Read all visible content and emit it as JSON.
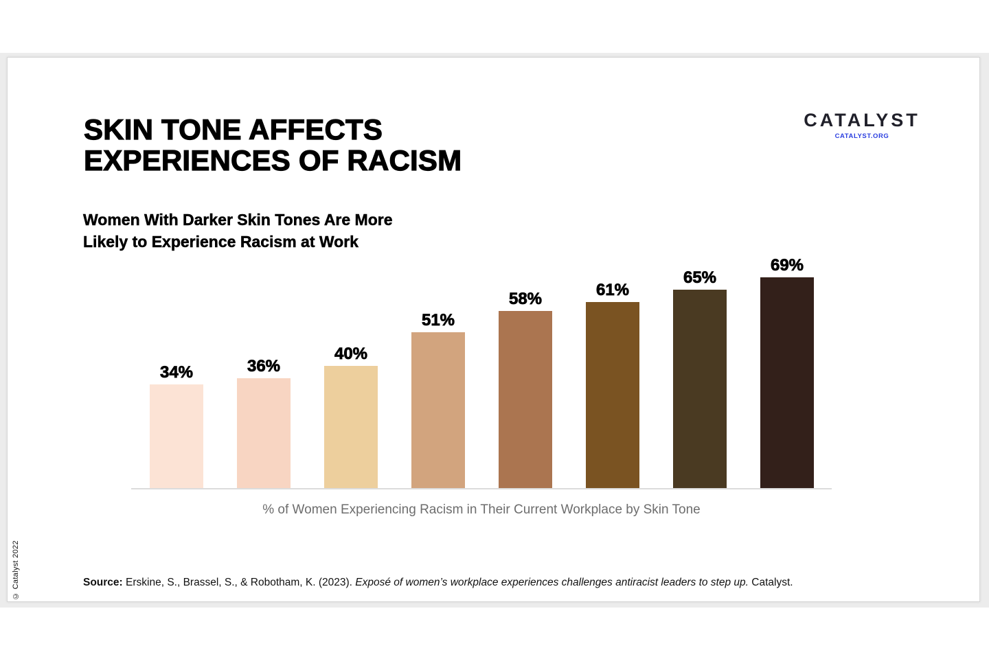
{
  "page": {
    "copyright": "© Catalyst 2022",
    "background_color": "#ffffff",
    "panel_color": "#ececec"
  },
  "header": {
    "title_line1": "SKIN TONE AFFECTS",
    "title_line2": "EXPERIENCES OF RACISM",
    "subtitle_line1": "Women With Darker Skin Tones Are More",
    "subtitle_line2": "Likely to Experience Racism at Work"
  },
  "logo": {
    "brand": "CATALYST",
    "site": "CATALYST.ORG",
    "brand_color": "#20202a",
    "site_color": "#2b3fe0"
  },
  "chart_data": {
    "type": "bar",
    "values": [
      34,
      36,
      40,
      51,
      58,
      61,
      65,
      69
    ],
    "labels": [
      "34%",
      "36%",
      "40%",
      "51%",
      "58%",
      "61%",
      "65%",
      "69%"
    ],
    "bar_colors": [
      "#fce3d5",
      "#f8d5c2",
      "#edcf9d",
      "#d2a47e",
      "#ab7550",
      "#7a5322",
      "#4a3a22",
      "#33201a"
    ],
    "title": "",
    "xlabel": "% of Women Experiencing Racism in Their Current Workplace by Skin Tone",
    "ylabel": "",
    "ylim": [
      0,
      75
    ],
    "y_axis": "hidden",
    "gridlines": "off",
    "legend": "none",
    "data_labels": "bold percentages above each bar",
    "note": "bars ordered lightest to darkest skin tone, colored as skin-tone swatches"
  },
  "source": {
    "prefix": "Source:",
    "authors": " Erskine, S., Brassel, S., & Robotham, K. (2023). ",
    "title_italic": "Exposé of women’s workplace experiences challenges antiracist leaders to step up.",
    "suffix": " Catalyst."
  }
}
